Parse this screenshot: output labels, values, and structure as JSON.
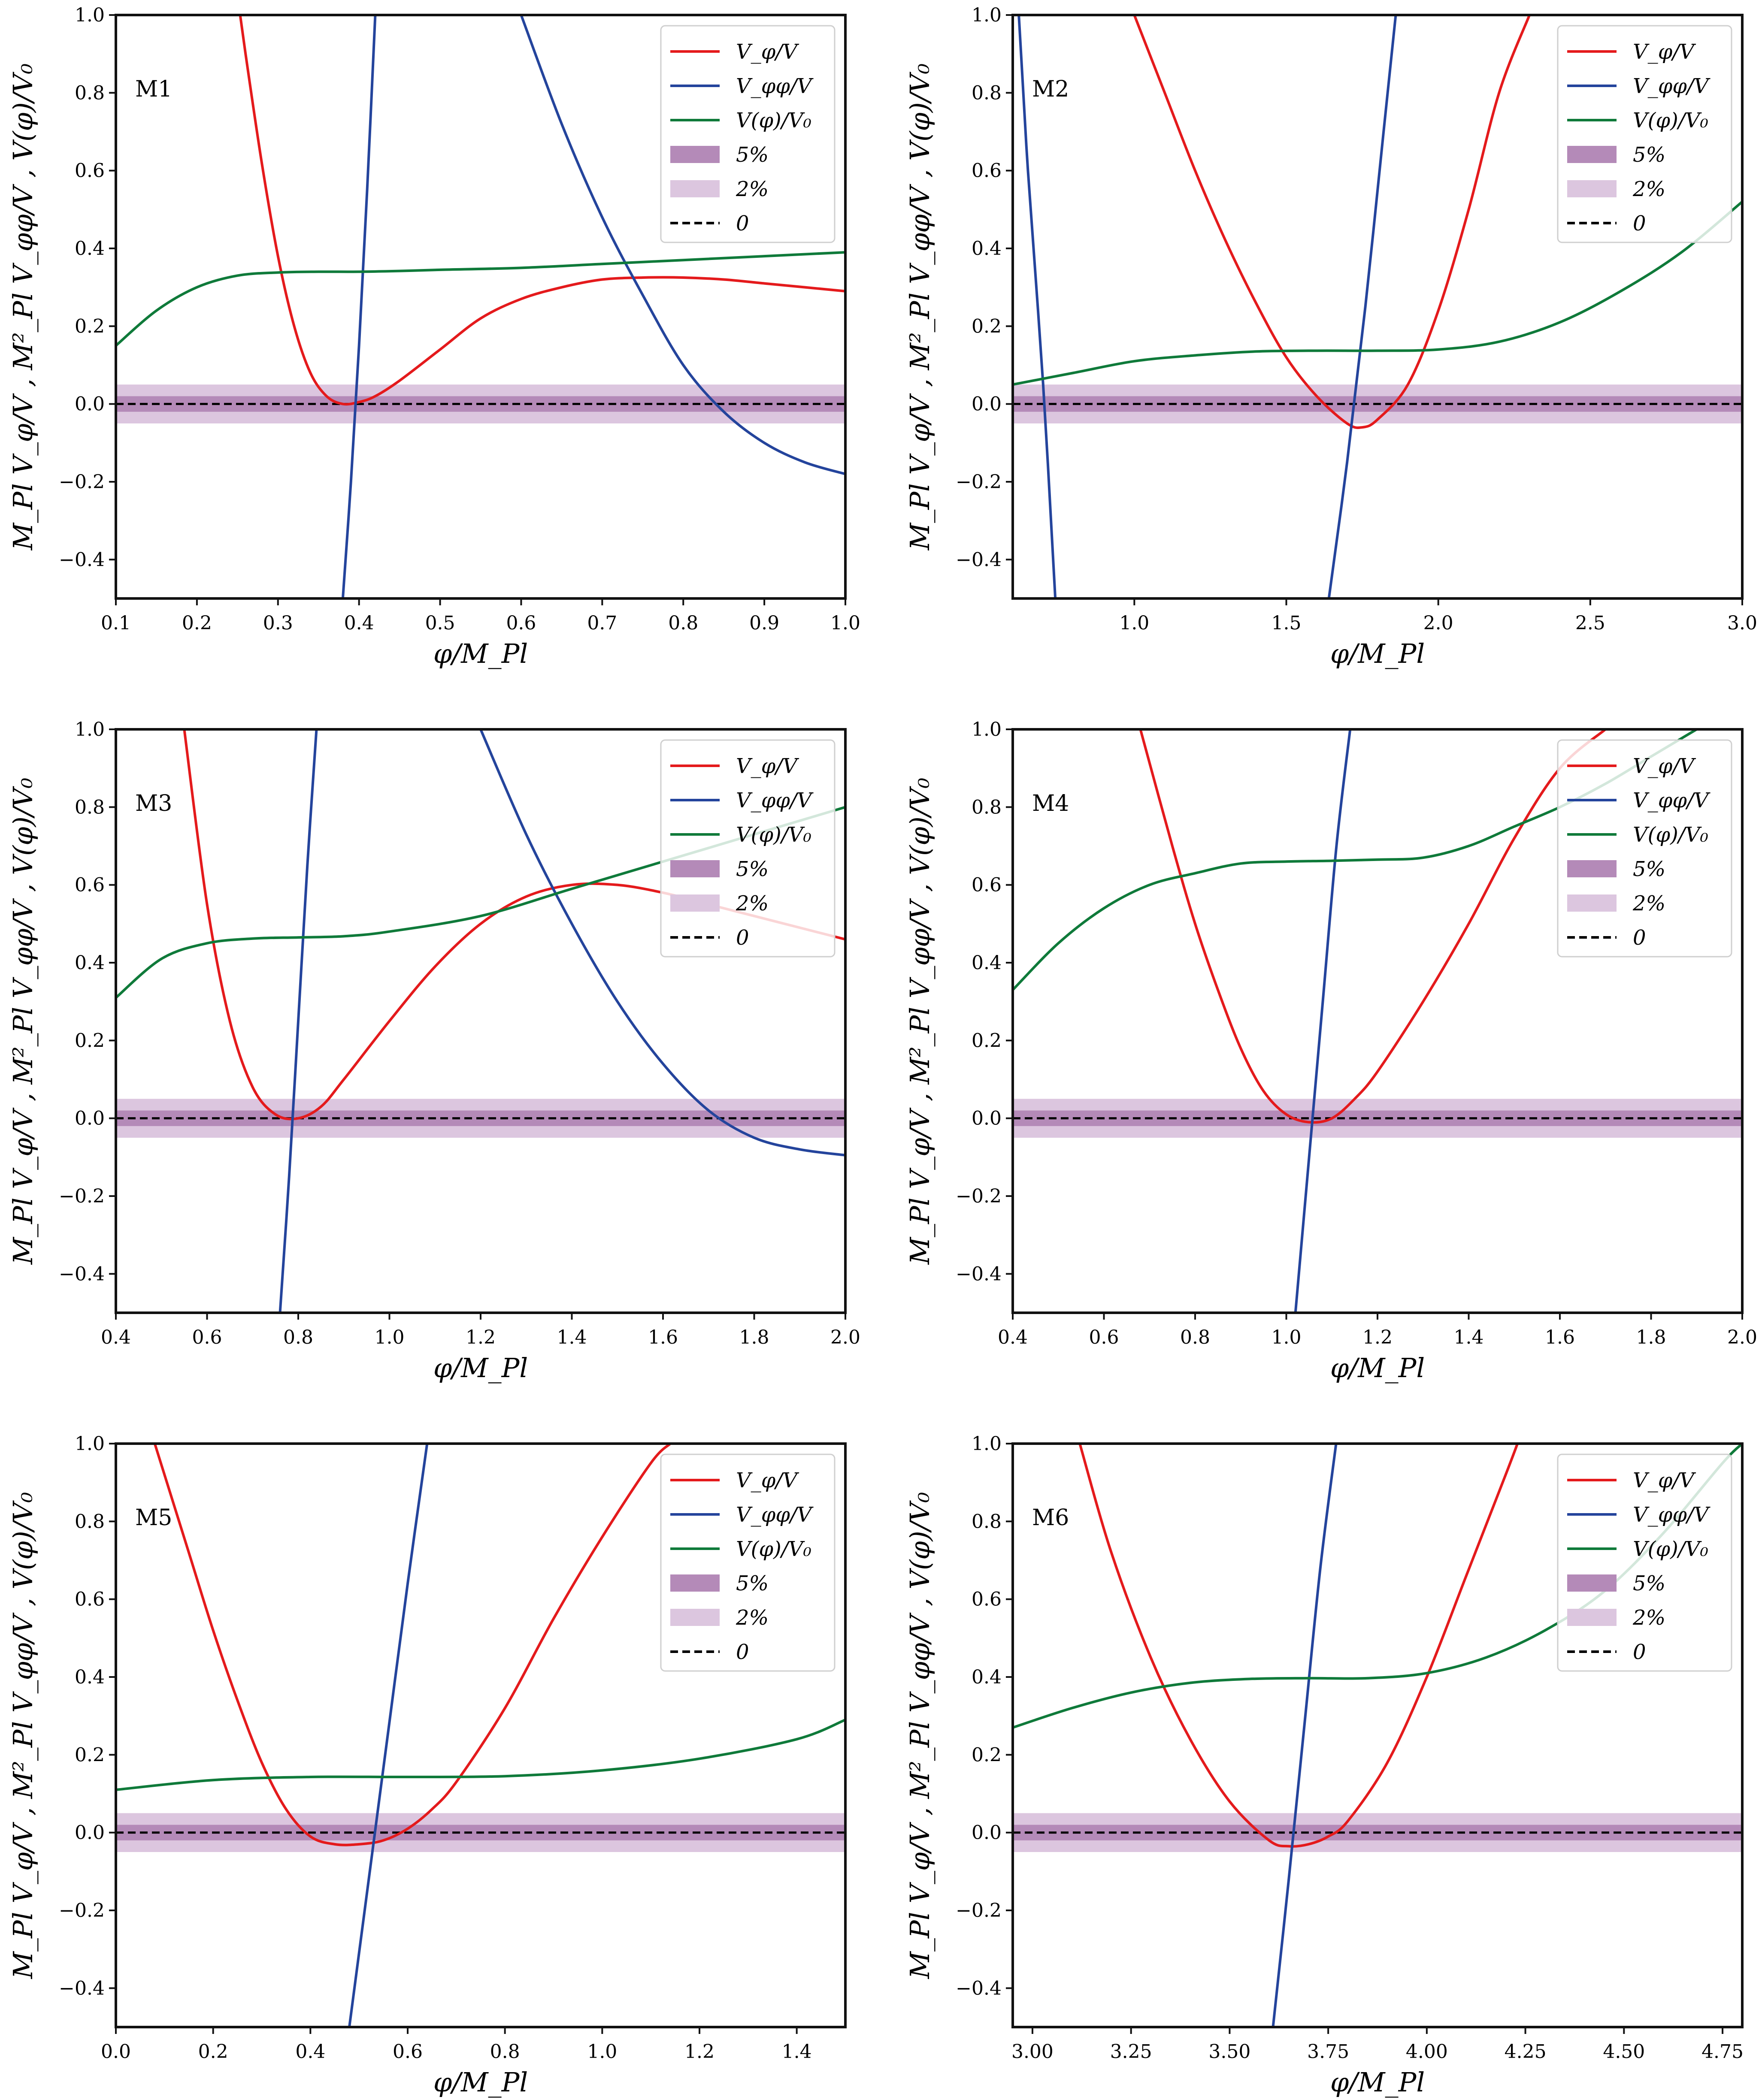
{
  "figure": {
    "xlabel": "φ/M_Pl",
    "ylabel": "M_Pl V_φ/V ,  M²_Pl V_φφ/V ,  V(φ)/V₀"
  },
  "legend": {
    "entries": [
      {
        "key": "vphi",
        "label": "V_φ/V",
        "color": "#e41a1c",
        "kind": "line"
      },
      {
        "key": "vphiphi",
        "label": "V_φφ/V",
        "color": "#24449c",
        "kind": "line"
      },
      {
        "key": "v",
        "label": "V(φ)/V₀",
        "color": "#0f7a3a",
        "kind": "line"
      },
      {
        "key": "band5",
        "label": "5%",
        "color": "#b48ab8",
        "kind": "band"
      },
      {
        "key": "band2",
        "label": "2%",
        "color": "#dcc6df",
        "kind": "band"
      },
      {
        "key": "zero",
        "label": "0",
        "color": "#000000",
        "kind": "dashed"
      }
    ]
  },
  "chart_data": [
    {
      "type": "line",
      "title": "M1",
      "xlabel": "φ/M_Pl",
      "ylabel": "M_Pl V_φ/V ,  M²_Pl V_φφ/V ,  V(φ)/V₀",
      "xlim": [
        0.1,
        1.0
      ],
      "ylim": [
        -0.5,
        1.0
      ],
      "xticks": [
        0.1,
        0.2,
        0.3,
        0.4,
        0.5,
        0.6,
        0.7,
        0.8,
        0.9,
        1.0
      ],
      "xtick_labels": [
        "0.1",
        "0.2",
        "0.3",
        "0.4",
        "0.5",
        "0.6",
        "0.7",
        "0.8",
        "0.9",
        "1.0"
      ],
      "yticks": [
        -0.4,
        -0.2,
        0.0,
        0.2,
        0.4,
        0.6,
        0.8,
        1.0
      ],
      "ytick_labels": [
        "−0.4",
        "−0.2",
        "0.0",
        "0.2",
        "0.4",
        "0.6",
        "0.8",
        "1.0"
      ],
      "bands": [
        {
          "name": "5%",
          "half_width": 0.05
        },
        {
          "name": "2%",
          "half_width": 0.02
        }
      ],
      "series": [
        {
          "name": "V_φ/V",
          "key": "vphi",
          "x": [
            0.25,
            0.26,
            0.28,
            0.3,
            0.32,
            0.34,
            0.36,
            0.38,
            0.4,
            0.42,
            0.45,
            0.5,
            0.55,
            0.6,
            0.65,
            0.7,
            0.75,
            0.8,
            0.85,
            0.9,
            0.95,
            1.0
          ],
          "y": [
            1.05,
            0.9,
            0.62,
            0.38,
            0.2,
            0.08,
            0.02,
            0.0,
            0.005,
            0.02,
            0.06,
            0.14,
            0.22,
            0.27,
            0.3,
            0.32,
            0.325,
            0.325,
            0.32,
            0.31,
            0.3,
            0.29
          ]
        },
        {
          "name": "V_φφ/V",
          "key": "vphiphi",
          "x": [
            0.38,
            0.39,
            0.4,
            0.41,
            0.42
          ],
          "y": [
            -0.5,
            -0.2,
            0.15,
            0.55,
            1.0
          ]
        },
        {
          "name": "V_φφ/V",
          "key": "vphiphi",
          "x": [
            0.6,
            0.65,
            0.7,
            0.75,
            0.8,
            0.85,
            0.9,
            0.95,
            1.0
          ],
          "y": [
            1.0,
            0.72,
            0.48,
            0.28,
            0.1,
            -0.02,
            -0.1,
            -0.15,
            -0.18
          ]
        },
        {
          "name": "V(φ)/V₀",
          "key": "v",
          "x": [
            0.1,
            0.15,
            0.2,
            0.25,
            0.3,
            0.35,
            0.4,
            0.45,
            0.5,
            0.6,
            0.7,
            0.8,
            0.9,
            1.0
          ],
          "y": [
            0.15,
            0.24,
            0.3,
            0.33,
            0.338,
            0.34,
            0.34,
            0.342,
            0.345,
            0.35,
            0.36,
            0.37,
            0.38,
            0.39
          ]
        }
      ]
    },
    {
      "type": "line",
      "title": "M2",
      "xlabel": "φ/M_Pl",
      "ylabel": "M_Pl V_φ/V ,  M²_Pl V_φφ/V ,  V(φ)/V₀",
      "xlim": [
        0.6,
        3.0
      ],
      "ylim": [
        -0.5,
        1.0
      ],
      "xticks": [
        1.0,
        1.5,
        2.0,
        2.5,
        3.0
      ],
      "xtick_labels": [
        "1.0",
        "1.5",
        "2.0",
        "2.5",
        "3.0"
      ],
      "yticks": [
        -0.4,
        -0.2,
        0.0,
        0.2,
        0.4,
        0.6,
        0.8,
        1.0
      ],
      "ytick_labels": [
        "−0.4",
        "−0.2",
        "0.0",
        "0.2",
        "0.4",
        "0.6",
        "0.8",
        "1.0"
      ],
      "bands": [
        {
          "name": "5%",
          "half_width": 0.05
        },
        {
          "name": "2%",
          "half_width": 0.02
        }
      ],
      "series": [
        {
          "name": "V_φ/V",
          "key": "vphi",
          "x": [
            1.0,
            1.1,
            1.2,
            1.3,
            1.4,
            1.5,
            1.6,
            1.7,
            1.75,
            1.8,
            1.9,
            2.0,
            2.1,
            2.2,
            2.3
          ],
          "y": [
            1.0,
            0.8,
            0.6,
            0.42,
            0.26,
            0.12,
            0.02,
            -0.05,
            -0.06,
            -0.04,
            0.05,
            0.24,
            0.5,
            0.8,
            1.0
          ]
        },
        {
          "name": "V_φφ/V",
          "key": "vphiphi",
          "x": [
            0.62,
            0.65,
            0.7,
            0.74
          ],
          "y": [
            1.0,
            0.6,
            0.05,
            -0.5
          ]
        },
        {
          "name": "V_φφ/V",
          "key": "vphiphi",
          "x": [
            1.64,
            1.7,
            1.76,
            1.82,
            1.86
          ],
          "y": [
            -0.5,
            -0.15,
            0.25,
            0.7,
            1.0
          ]
        },
        {
          "name": "V(φ)/V₀",
          "key": "v",
          "x": [
            0.6,
            0.8,
            1.0,
            1.2,
            1.4,
            1.6,
            1.8,
            2.0,
            2.2,
            2.4,
            2.6,
            2.8,
            3.0
          ],
          "y": [
            0.05,
            0.08,
            0.11,
            0.125,
            0.135,
            0.137,
            0.137,
            0.14,
            0.16,
            0.21,
            0.29,
            0.39,
            0.52
          ]
        }
      ]
    },
    {
      "type": "line",
      "title": "M3",
      "xlabel": "φ/M_Pl",
      "ylabel": "M_Pl V_φ/V ,  M²_Pl V_φφ/V ,  V(φ)/V₀",
      "xlim": [
        0.4,
        2.0
      ],
      "ylim": [
        -0.5,
        1.0
      ],
      "xticks": [
        0.4,
        0.6,
        0.8,
        1.0,
        1.2,
        1.4,
        1.6,
        1.8,
        2.0
      ],
      "xtick_labels": [
        "0.4",
        "0.6",
        "0.8",
        "1.0",
        "1.2",
        "1.4",
        "1.6",
        "1.8",
        "2.0"
      ],
      "yticks": [
        -0.4,
        -0.2,
        0.0,
        0.2,
        0.4,
        0.6,
        0.8,
        1.0
      ],
      "ytick_labels": [
        "−0.4",
        "−0.2",
        "0.0",
        "0.2",
        "0.4",
        "0.6",
        "0.8",
        "1.0"
      ],
      "bands": [
        {
          "name": "5%",
          "half_width": 0.05
        },
        {
          "name": "2%",
          "half_width": 0.02
        }
      ],
      "series": [
        {
          "name": "V_φ/V",
          "key": "vphi",
          "x": [
            0.55,
            0.6,
            0.65,
            0.7,
            0.75,
            0.8,
            0.85,
            0.9,
            1.0,
            1.1,
            1.2,
            1.3,
            1.4,
            1.5,
            1.6,
            1.7,
            1.8,
            1.9,
            2.0
          ],
          "y": [
            1.0,
            0.55,
            0.25,
            0.08,
            0.01,
            0.0,
            0.03,
            0.1,
            0.25,
            0.39,
            0.5,
            0.57,
            0.6,
            0.6,
            0.58,
            0.55,
            0.52,
            0.49,
            0.46
          ]
        },
        {
          "name": "V_φφ/V",
          "key": "vphiphi",
          "x": [
            0.76,
            0.78,
            0.8,
            0.82,
            0.84
          ],
          "y": [
            -0.5,
            -0.15,
            0.25,
            0.65,
            1.0
          ]
        },
        {
          "name": "V_φφ/V",
          "key": "vphiphi",
          "x": [
            1.2,
            1.3,
            1.4,
            1.5,
            1.6,
            1.7,
            1.8,
            1.9,
            2.0
          ],
          "y": [
            1.0,
            0.73,
            0.5,
            0.3,
            0.14,
            0.02,
            -0.05,
            -0.08,
            -0.095
          ]
        },
        {
          "name": "V(φ)/V₀",
          "key": "v",
          "x": [
            0.4,
            0.5,
            0.6,
            0.7,
            0.8,
            0.9,
            1.0,
            1.2,
            1.4,
            1.6,
            1.8,
            2.0
          ],
          "y": [
            0.31,
            0.41,
            0.45,
            0.462,
            0.465,
            0.468,
            0.48,
            0.52,
            0.59,
            0.66,
            0.73,
            0.8
          ]
        }
      ]
    },
    {
      "type": "line",
      "title": "M4",
      "xlabel": "φ/M_Pl",
      "ylabel": "M_Pl V_φ/V ,  M²_Pl V_φφ/V ,  V(φ)/V₀",
      "xlim": [
        0.4,
        2.0
      ],
      "ylim": [
        -0.5,
        1.0
      ],
      "xticks": [
        0.4,
        0.6,
        0.8,
        1.0,
        1.2,
        1.4,
        1.6,
        1.8,
        2.0
      ],
      "xtick_labels": [
        "0.4",
        "0.6",
        "0.8",
        "1.0",
        "1.2",
        "1.4",
        "1.6",
        "1.8",
        "2.0"
      ],
      "yticks": [
        -0.4,
        -0.2,
        0.0,
        0.2,
        0.4,
        0.6,
        0.8,
        1.0
      ],
      "ytick_labels": [
        "−0.4",
        "−0.2",
        "0.0",
        "0.2",
        "0.4",
        "0.6",
        "0.8",
        "1.0"
      ],
      "bands": [
        {
          "name": "5%",
          "half_width": 0.05
        },
        {
          "name": "2%",
          "half_width": 0.02
        }
      ],
      "series": [
        {
          "name": "V_φ/V",
          "key": "vphi",
          "x": [
            0.68,
            0.75,
            0.8,
            0.85,
            0.9,
            0.95,
            1.0,
            1.05,
            1.1,
            1.15,
            1.2,
            1.3,
            1.4,
            1.5,
            1.6,
            1.7
          ],
          "y": [
            1.0,
            0.7,
            0.5,
            0.33,
            0.18,
            0.07,
            0.01,
            -0.01,
            0.0,
            0.05,
            0.12,
            0.3,
            0.5,
            0.72,
            0.9,
            1.0
          ]
        },
        {
          "name": "V_φφ/V",
          "key": "vphiphi",
          "x": [
            1.02,
            1.05,
            1.08,
            1.11,
            1.14
          ],
          "y": [
            -0.5,
            -0.1,
            0.3,
            0.7,
            1.0
          ]
        },
        {
          "name": "V(φ)/V₀",
          "key": "v",
          "x": [
            0.4,
            0.5,
            0.6,
            0.7,
            0.8,
            0.9,
            1.0,
            1.1,
            1.2,
            1.3,
            1.4,
            1.5,
            1.6,
            1.7,
            1.8,
            1.9
          ],
          "y": [
            0.33,
            0.45,
            0.54,
            0.6,
            0.63,
            0.655,
            0.66,
            0.662,
            0.665,
            0.67,
            0.7,
            0.75,
            0.8,
            0.86,
            0.93,
            1.0
          ]
        }
      ]
    },
    {
      "type": "line",
      "title": "M5",
      "xlabel": "φ/M_Pl",
      "ylabel": "M_Pl V_φ/V ,  M²_Pl V_φφ/V ,  V(φ)/V₀",
      "xlim": [
        0.0,
        1.5
      ],
      "ylim": [
        -0.5,
        1.0
      ],
      "xticks": [
        0.0,
        0.2,
        0.4,
        0.6,
        0.8,
        1.0,
        1.2,
        1.4
      ],
      "xtick_labels": [
        "0.0",
        "0.2",
        "0.4",
        "0.6",
        "0.8",
        "1.0",
        "1.2",
        "1.4"
      ],
      "yticks": [
        -0.4,
        -0.2,
        0.0,
        0.2,
        0.4,
        0.6,
        0.8,
        1.0
      ],
      "ytick_labels": [
        "−0.4",
        "−0.2",
        "0.0",
        "0.2",
        "0.4",
        "0.6",
        "0.8",
        "1.0"
      ],
      "bands": [
        {
          "name": "5%",
          "half_width": 0.05
        },
        {
          "name": "2%",
          "half_width": 0.02
        }
      ],
      "series": [
        {
          "name": "V_φ/V",
          "key": "vphi",
          "x": [
            0.08,
            0.15,
            0.2,
            0.25,
            0.3,
            0.35,
            0.4,
            0.45,
            0.5,
            0.55,
            0.6,
            0.65,
            0.7,
            0.8,
            0.9,
            1.0,
            1.1,
            1.14
          ],
          "y": [
            1.0,
            0.72,
            0.52,
            0.34,
            0.18,
            0.06,
            -0.01,
            -0.03,
            -0.03,
            -0.02,
            0.01,
            0.06,
            0.13,
            0.32,
            0.55,
            0.76,
            0.95,
            1.0
          ]
        },
        {
          "name": "V_φφ/V",
          "key": "vphiphi",
          "x": [
            0.48,
            0.52,
            0.56,
            0.6,
            0.64
          ],
          "y": [
            -0.5,
            -0.12,
            0.26,
            0.64,
            1.0
          ]
        },
        {
          "name": "V(φ)/V₀",
          "key": "v",
          "x": [
            0.0,
            0.2,
            0.4,
            0.6,
            0.8,
            1.0,
            1.2,
            1.4,
            1.5
          ],
          "y": [
            0.11,
            0.135,
            0.143,
            0.143,
            0.145,
            0.16,
            0.19,
            0.24,
            0.29
          ]
        }
      ]
    },
    {
      "type": "line",
      "title": "M6",
      "xlabel": "φ/M_Pl",
      "ylabel": "M_Pl V_φ/V ,  M²_Pl V_φφ/V ,  V(φ)/V₀",
      "xlim": [
        2.95,
        4.8
      ],
      "ylim": [
        -0.5,
        1.0
      ],
      "xticks": [
        3.0,
        3.25,
        3.5,
        3.75,
        4.0,
        4.25,
        4.5,
        4.75
      ],
      "xtick_labels": [
        "3.00",
        "3.25",
        "3.50",
        "3.75",
        "4.00",
        "4.25",
        "4.50",
        "4.75"
      ],
      "yticks": [
        -0.4,
        -0.2,
        0.0,
        0.2,
        0.4,
        0.6,
        0.8,
        1.0
      ],
      "ytick_labels": [
        "−0.4",
        "−0.2",
        "0.0",
        "0.2",
        "0.4",
        "0.6",
        "0.8",
        "1.0"
      ],
      "bands": [
        {
          "name": "5%",
          "half_width": 0.05
        },
        {
          "name": "2%",
          "half_width": 0.02
        }
      ],
      "series": [
        {
          "name": "V_φ/V",
          "key": "vphi",
          "x": [
            3.12,
            3.2,
            3.3,
            3.4,
            3.5,
            3.6,
            3.65,
            3.7,
            3.75,
            3.8,
            3.9,
            4.0,
            4.1,
            4.2,
            4.23
          ],
          "y": [
            1.0,
            0.72,
            0.45,
            0.24,
            0.08,
            -0.02,
            -0.035,
            -0.03,
            -0.01,
            0.03,
            0.18,
            0.4,
            0.66,
            0.92,
            1.0
          ]
        },
        {
          "name": "V_φφ/V",
          "key": "vphiphi",
          "x": [
            3.61,
            3.65,
            3.69,
            3.73,
            3.77
          ],
          "y": [
            -0.5,
            -0.12,
            0.28,
            0.68,
            1.0
          ]
        },
        {
          "name": "V(φ)/V₀",
          "key": "v",
          "x": [
            2.95,
            3.1,
            3.25,
            3.4,
            3.55,
            3.7,
            3.85,
            4.0,
            4.15,
            4.3,
            4.45,
            4.6,
            4.75,
            4.8
          ],
          "y": [
            0.27,
            0.32,
            0.36,
            0.385,
            0.395,
            0.397,
            0.397,
            0.41,
            0.45,
            0.52,
            0.62,
            0.77,
            0.95,
            1.0
          ]
        }
      ]
    }
  ]
}
